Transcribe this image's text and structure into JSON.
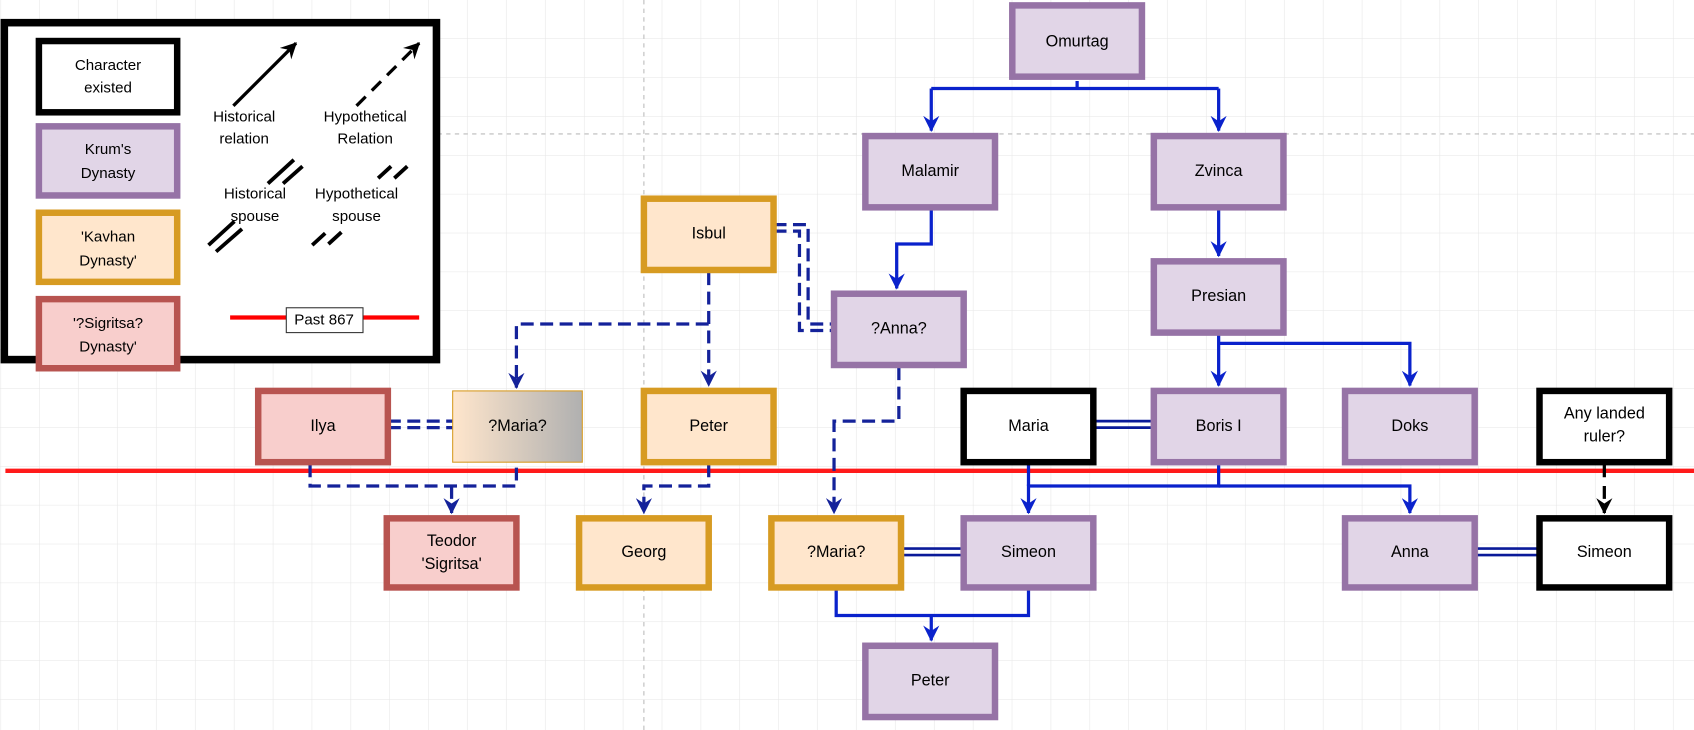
{
  "colors": {
    "krum_fill": "#e1d5e7",
    "krum_stroke": "#9673a6",
    "kavhan_fill": "#ffe6cc",
    "kavhan_stroke": "#d79b22",
    "sigritsa_fill": "#f8cecc",
    "sigritsa_stroke": "#b85450",
    "existed_stroke": "#000000",
    "relation": "#0a22cc",
    "cutoff_line": "#ff0000"
  },
  "legend": {
    "existed": [
      "Character",
      "existed"
    ],
    "krum": [
      "Krum's",
      "Dynasty"
    ],
    "kavhan": [
      "'Kavhan",
      "Dynasty'"
    ],
    "sigritsa": [
      "'?Sigritsa?",
      "Dynasty'"
    ],
    "historical_relation": [
      "Historical",
      "relation"
    ],
    "hypothetical_relation": [
      "Hypothetical",
      "Relation"
    ],
    "historical_spouse": [
      "Historical",
      "spouse"
    ],
    "hypothetical_spouse": [
      "Hypothetical",
      "spouse"
    ],
    "cutoff": "Past 867"
  },
  "nodes": {
    "omurtag": [
      "Omurtag"
    ],
    "malamir": [
      "Malamir"
    ],
    "zvinca": [
      "Zvinca"
    ],
    "isbul": [
      "Isbul"
    ],
    "presian": [
      "Presian"
    ],
    "anna_q": [
      "?Anna?"
    ],
    "ilya": [
      "Ilya"
    ],
    "maria_q1": [
      "?Maria?"
    ],
    "peter_k": [
      "Peter"
    ],
    "maria": [
      "Maria"
    ],
    "boris": [
      "Boris I"
    ],
    "doks": [
      "Doks"
    ],
    "landed": [
      "Any landed",
      "ruler?"
    ],
    "teodor": [
      "Teodor",
      "'Sigritsa'"
    ],
    "georg": [
      "Georg"
    ],
    "maria_q2": [
      "?Maria?"
    ],
    "simeon": [
      "Simeon"
    ],
    "anna": [
      "Anna"
    ],
    "simeon2": [
      "Simeon"
    ],
    "peter": [
      "Peter"
    ]
  }
}
